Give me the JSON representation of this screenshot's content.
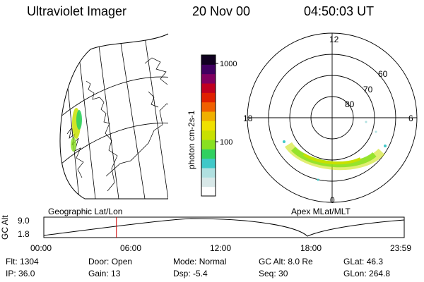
{
  "header": {
    "instrument": "Ultraviolet Imager",
    "date": "20 Nov 00",
    "time": "04:50:03 UT"
  },
  "colorbar": {
    "label": "photon cm-2s-1",
    "ticks": [
      "1000",
      "100"
    ],
    "colors": [
      "#ffffff",
      "#d8e8e8",
      "#b0e0e0",
      "#40c8c8",
      "#30d060",
      "#88e020",
      "#c8e000",
      "#f0e000",
      "#f0b000",
      "#f06000",
      "#e02000",
      "#c00020",
      "#800060",
      "#400060",
      "#100020"
    ]
  },
  "polar": {
    "mlt_labels": {
      "top": "12",
      "left": "18",
      "right": "6",
      "bottom": "0"
    },
    "lat_labels": [
      "60",
      "70",
      "80"
    ]
  },
  "panels": {
    "left_caption": "Geographic Lat/Lon",
    "right_caption": "Apex MLat/MLT"
  },
  "altitude_plot": {
    "ylabel": "GC Alt",
    "y_ticks": [
      "9.0",
      "1.8"
    ],
    "x_ticks": [
      "00:00",
      "06:00",
      "12:00",
      "18:00",
      "23:59"
    ],
    "cursor_hour": 4.834,
    "series_color": "#000000",
    "cursor_color": "#cc0000"
  },
  "info": {
    "row1": [
      {
        "label": "Flt:",
        "value": "1304"
      },
      {
        "label": "Door:",
        "value": "Open"
      },
      {
        "label": "Mode:",
        "value": "Normal"
      },
      {
        "label": "GC Alt:",
        "value": "8.0 Re"
      },
      {
        "label": "GLat:",
        "value": "46.3"
      }
    ],
    "row2": [
      {
        "label": "IP:",
        "value": "36.0"
      },
      {
        "label": "Gain:",
        "value": "13"
      },
      {
        "label": "Dsp:",
        "value": "-5.4"
      },
      {
        "label": "Seq:",
        "value": "30"
      },
      {
        "label": "GLon:",
        "value": "264.8"
      }
    ]
  }
}
